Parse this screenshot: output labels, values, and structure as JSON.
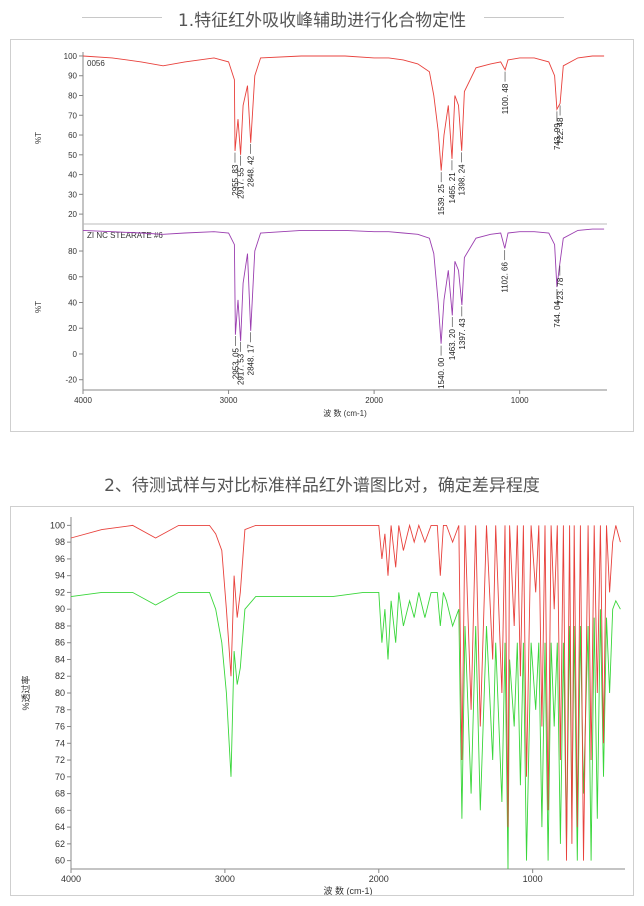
{
  "section1": {
    "title": "1.特征红外吸收峰辅助进行化合物定性"
  },
  "section2": {
    "title": "2、待测试样与对比标准样品红外谱图比对，确定差异程度"
  },
  "chart_data": [
    {
      "type": "line",
      "panel": "top",
      "label": "0056",
      "ylabel": "%T",
      "ylim": [
        15,
        102
      ],
      "yticks": [
        20,
        30,
        40,
        50,
        60,
        70,
        80,
        90,
        100
      ],
      "color": "#e8413c",
      "series": [
        {
          "x": [
            4000,
            3800,
            3600,
            3450,
            3300,
            3100,
            3000,
            2960,
            2956,
            2935,
            2917,
            2900,
            2870,
            2848,
            2820,
            2780,
            2500,
            2200,
            2000,
            1900,
            1800,
            1700,
            1620,
            1590,
            1560,
            1539,
            1520,
            1490,
            1465,
            1445,
            1420,
            1398,
            1380,
            1300,
            1200,
            1130,
            1100,
            1080,
            1000,
            900,
            800,
            760,
            744,
            722,
            700,
            600,
            500,
            420
          ],
          "y": [
            100,
            99,
            97,
            95,
            97,
            99,
            97,
            88,
            52,
            68,
            50,
            75,
            85,
            56,
            90,
            99,
            100,
            100,
            99,
            99,
            98,
            96,
            92,
            80,
            62,
            42,
            60,
            75,
            48,
            80,
            75,
            52,
            82,
            94,
            96,
            97,
            93,
            98,
            99,
            99,
            97,
            90,
            73,
            76,
            95,
            99,
            100,
            100
          ]
        }
      ],
      "annotations": [
        {
          "x": 2955.83,
          "text": "2955. 83"
        },
        {
          "x": 2917.55,
          "text": "2917. 55"
        },
        {
          "x": 2848.42,
          "text": "2848. 42"
        },
        {
          "x": 1539.25,
          "text": "1539. 25"
        },
        {
          "x": 1465.21,
          "text": "1465. 21"
        },
        {
          "x": 1398.24,
          "text": "1398. 24"
        },
        {
          "x": 1100.48,
          "text": "1100. 48"
        },
        {
          "x": 743.99,
          "text": "743. 99"
        },
        {
          "x": 722.48,
          "text": "722. 48"
        }
      ]
    },
    {
      "type": "line",
      "panel": "bottom",
      "label": "ZI NC STEARATE #6",
      "ylabel": "%T",
      "ylim": [
        -28,
        101
      ],
      "yticks": [
        -20,
        0,
        20,
        40,
        60,
        80
      ],
      "xlabel": "波 数 (cm-1)",
      "xlim": [
        4000,
        400
      ],
      "xticks": [
        4000,
        3000,
        2000,
        1000
      ],
      "color": "#9b3fb0",
      "series": [
        {
          "x": [
            4000,
            3800,
            3600,
            3450,
            3300,
            3100,
            3000,
            2960,
            2953,
            2935,
            2917,
            2900,
            2870,
            2848,
            2820,
            2780,
            2500,
            2200,
            2000,
            1900,
            1800,
            1700,
            1620,
            1590,
            1560,
            1540,
            1520,
            1490,
            1463,
            1445,
            1420,
            1397,
            1380,
            1300,
            1200,
            1130,
            1102,
            1080,
            1000,
            900,
            800,
            760,
            744,
            724,
            700,
            600,
            500,
            420
          ],
          "y": [
            96,
            95,
            94,
            93,
            94,
            95,
            94,
            85,
            15,
            42,
            10,
            55,
            78,
            18,
            80,
            94,
            96,
            96,
            95,
            95,
            94,
            93,
            90,
            78,
            40,
            8,
            42,
            65,
            30,
            72,
            65,
            38,
            75,
            90,
            93,
            94,
            82,
            94,
            95,
            95,
            94,
            85,
            52,
            70,
            90,
            96,
            97,
            97
          ]
        }
      ],
      "annotations": [
        {
          "x": 2953.05,
          "text": "2953. 05"
        },
        {
          "x": 2917.53,
          "text": "2917. 53"
        },
        {
          "x": 2848.17,
          "text": "2848. 17"
        },
        {
          "x": 1540.0,
          "text": "1540. 00"
        },
        {
          "x": 1463.2,
          "text": "1463. 20"
        },
        {
          "x": 1397.43,
          "text": "1397. 43"
        },
        {
          "x": 1102.66,
          "text": "1102. 66"
        },
        {
          "x": 744.04,
          "text": "744. 04"
        },
        {
          "x": 723.78,
          "text": "723. 78"
        }
      ]
    },
    {
      "type": "line",
      "panel": "comparison",
      "ylabel": "%透过率",
      "ylim": [
        59,
        101
      ],
      "yticks": [
        60,
        62,
        64,
        66,
        68,
        70,
        72,
        74,
        76,
        78,
        80,
        82,
        84,
        86,
        88,
        90,
        92,
        94,
        96,
        98,
        100
      ],
      "xlabel": "波 数 (cm-1)",
      "xlim": [
        4000,
        400
      ],
      "xticks": [
        4000,
        3000,
        2000,
        1000
      ],
      "series": [
        {
          "color": "#e8413c",
          "x": [
            4000,
            3800,
            3600,
            3450,
            3300,
            3100,
            3060,
            3020,
            2990,
            2960,
            2940,
            2920,
            2900,
            2870,
            2800,
            2700,
            2500,
            2300,
            2100,
            2000,
            1980,
            1960,
            1940,
            1920,
            1890,
            1870,
            1840,
            1800,
            1770,
            1740,
            1700,
            1660,
            1620,
            1600,
            1580,
            1560,
            1520,
            1480,
            1460,
            1440,
            1400,
            1370,
            1340,
            1300,
            1260,
            1240,
            1200,
            1180,
            1160,
            1150,
            1120,
            1100,
            1080,
            1060,
            1040,
            1010,
            980,
            960,
            940,
            920,
            900,
            880,
            860,
            840,
            820,
            800,
            780,
            760,
            745,
            730,
            710,
            690,
            670,
            640,
            620,
            600,
            580,
            560,
            540,
            520,
            500,
            480,
            460,
            430
          ],
          "y": [
            98.5,
            99.5,
            100,
            98.5,
            100,
            100,
            99,
            97,
            90,
            82,
            94,
            89,
            92,
            99.5,
            100,
            100,
            100,
            100,
            100,
            100,
            96,
            99,
            94,
            100,
            95,
            100,
            97,
            100,
            98,
            100,
            98,
            100,
            100,
            94,
            100,
            100,
            98,
            100,
            72,
            100,
            78,
            100,
            76,
            100,
            84,
            100,
            80,
            100,
            64,
            100,
            88,
            100,
            82,
            100,
            70,
            100,
            92,
            100,
            76,
            100,
            66,
            100,
            90,
            100,
            72,
            100,
            60,
            100,
            62,
            100,
            64,
            100,
            60,
            100,
            72,
            100,
            80,
            100,
            74,
            100,
            92,
            98,
            100,
            98
          ]
        },
        {
          "color": "#39d63a",
          "x": [
            4000,
            3800,
            3600,
            3450,
            3300,
            3100,
            3060,
            3020,
            2990,
            2960,
            2940,
            2920,
            2900,
            2870,
            2800,
            2700,
            2500,
            2300,
            2100,
            2000,
            1980,
            1960,
            1940,
            1920,
            1890,
            1870,
            1840,
            1800,
            1770,
            1740,
            1700,
            1660,
            1620,
            1600,
            1580,
            1560,
            1520,
            1480,
            1460,
            1440,
            1400,
            1370,
            1340,
            1300,
            1260,
            1240,
            1200,
            1180,
            1160,
            1150,
            1120,
            1100,
            1080,
            1060,
            1040,
            1010,
            980,
            960,
            940,
            920,
            900,
            880,
            860,
            840,
            820,
            800,
            780,
            760,
            745,
            730,
            710,
            690,
            670,
            640,
            620,
            600,
            580,
            560,
            540,
            520,
            500,
            480,
            460,
            430
          ],
          "y": [
            91.5,
            92,
            92,
            90.5,
            92,
            92,
            90,
            86,
            80,
            70,
            85,
            81,
            83,
            90,
            91.5,
            91.5,
            91.5,
            91.5,
            92,
            92,
            86,
            90,
            84,
            91,
            86,
            92,
            88,
            91,
            89,
            92,
            89,
            92,
            92,
            88,
            92,
            91,
            88,
            90,
            65,
            88,
            68,
            88,
            66,
            88,
            72,
            86,
            67,
            86,
            59,
            84,
            76,
            86,
            69,
            86,
            60,
            86,
            78,
            86,
            64,
            86,
            60,
            86,
            76,
            86,
            62,
            86,
            62,
            88,
            65,
            88,
            60,
            88,
            68,
            88,
            60,
            89,
            65,
            90,
            70,
            89,
            80,
            90,
            91,
            90
          ]
        }
      ]
    }
  ]
}
